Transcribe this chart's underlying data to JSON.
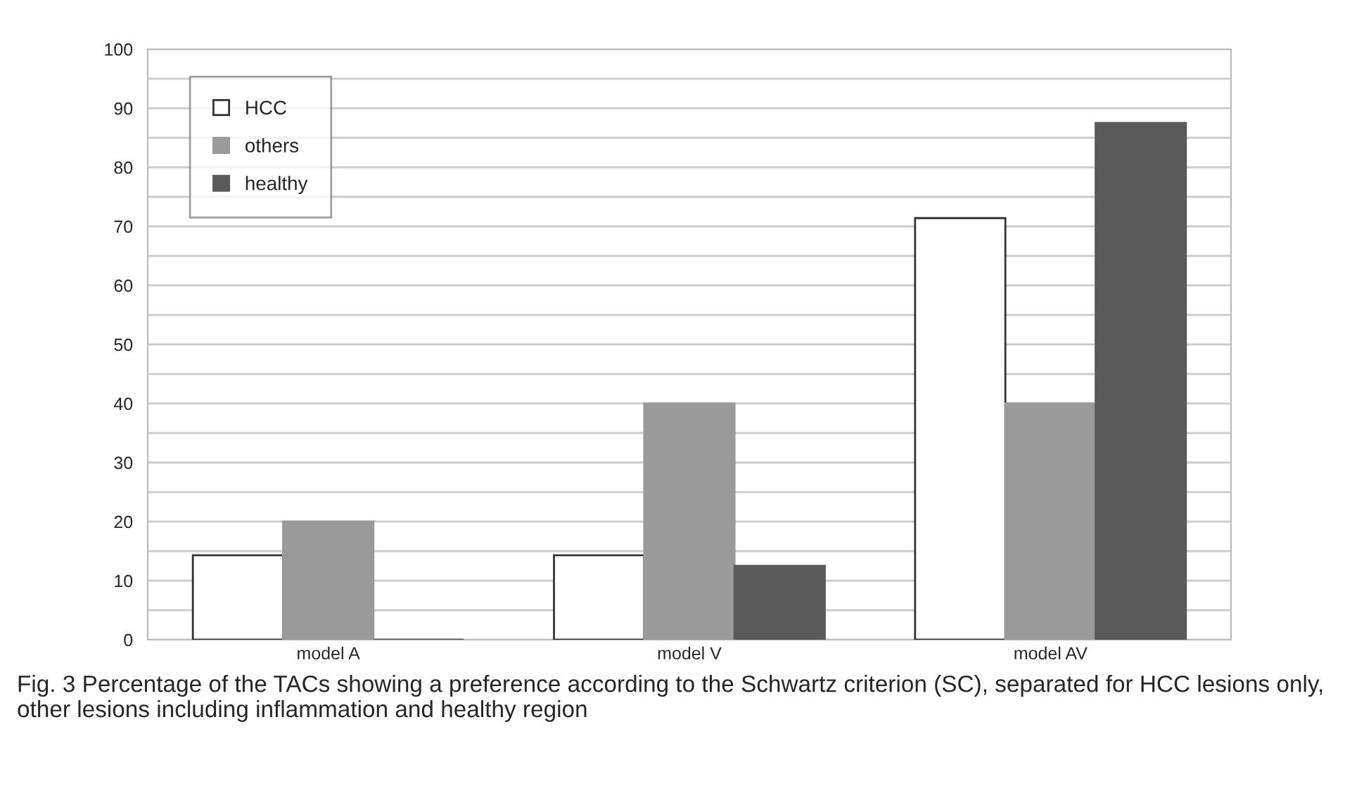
{
  "chart_data": {
    "type": "bar",
    "categories": [
      "model A",
      "model V",
      "model AV"
    ],
    "series": [
      {
        "name": "HCC",
        "color": "#ffffff",
        "values": [
          14.3,
          14.3,
          71.4
        ]
      },
      {
        "name": "others",
        "color": "#9a9a9a",
        "values": [
          20,
          40,
          40
        ]
      },
      {
        "name": "healthy",
        "color": "#5a5a5a",
        "values": [
          0,
          12.5,
          87.5
        ]
      }
    ],
    "ylim": [
      0,
      100
    ],
    "yticks": [
      0,
      {
        "value": 5,
        "label": null
      },
      10,
      {
        "value": 15,
        "label": null
      },
      20,
      {
        "value": 25,
        "label": null
      },
      30,
      {
        "value": 35,
        "label": null
      },
      40,
      {
        "value": 45,
        "label": null
      },
      50,
      {
        "value": 55,
        "label": null
      },
      60,
      {
        "value": 65,
        "label": null
      },
      70,
      {
        "value": 75,
        "label": null
      },
      80,
      {
        "value": 85,
        "label": null
      },
      90,
      {
        "value": 95,
        "label": null
      },
      100
    ],
    "grid": "y",
    "legend": "top left",
    "annotations": [
      "Fig. 3 Percentage of the TACs showing a preference according to the Schwartz criterion (SC), separated for HCC lesions only, other lesions including inflammation and healthy region"
    ]
  }
}
